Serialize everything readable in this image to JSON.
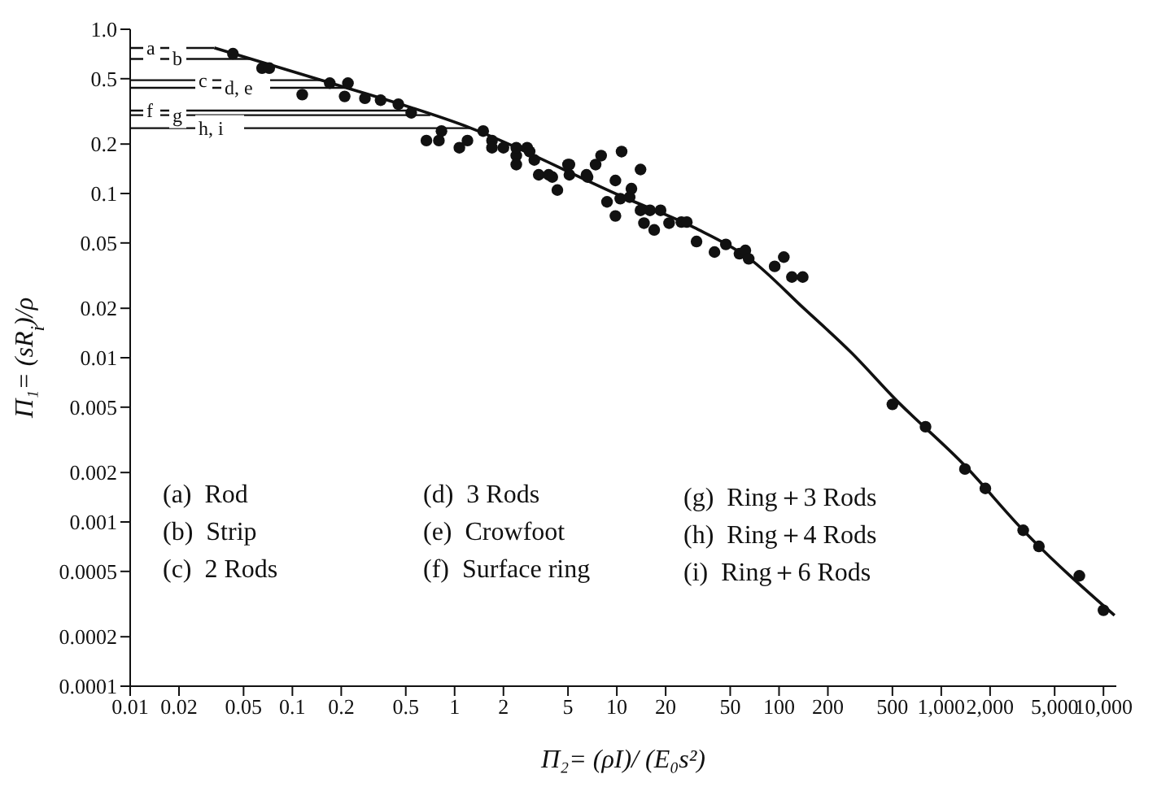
{
  "chart_data": {
    "type": "scatter",
    "xlabel": "Π₂= (ρI)/ (E₀s²)",
    "ylabel": "Π₁= (sR$_{i}$)/ρ",
    "log": "xy",
    "grid": false,
    "legend": false,
    "marker": "circle",
    "xlim": [
      0.01,
      12000
    ],
    "ylim": [
      0.0001,
      1
    ],
    "xticks": [
      0.01,
      0.02,
      0.05,
      0.1,
      0.2,
      0.5,
      1,
      2,
      5,
      10,
      20,
      50,
      100,
      200,
      500,
      {
        "value": 1000,
        "label": "1,000"
      },
      {
        "value": 2000,
        "label": "2,000"
      },
      {
        "value": 5000,
        "label": "5,000"
      },
      {
        "value": 10000,
        "label": "10,000"
      }
    ],
    "yticks": [
      {
        "value": 1,
        "label": "1.0"
      },
      0.5,
      0.2,
      0.1,
      0.05,
      0.02,
      0.01,
      0.005,
      0.002,
      0.001,
      0.0005,
      0.0002,
      0.0001
    ],
    "series": [
      {
        "color": "#111111",
        "x": [
          0.043,
          0.065,
          0.072,
          0.115,
          0.17,
          0.22,
          0.21,
          0.28,
          0.35,
          0.45,
          0.54,
          0.67,
          0.8,
          0.83,
          1.07,
          1.2,
          1.5,
          1.7,
          1.7,
          2.0,
          2.4,
          2.8,
          3.1,
          3.8,
          4.3,
          5.0,
          6.5,
          2.4,
          2.9,
          2.4,
          3.3,
          4.0,
          5.1,
          5.1,
          6.6,
          7.4,
          8,
          8.7,
          9.8,
          9.8,
          10.7,
          10.5,
          12,
          12.3,
          14,
          14,
          14.7,
          16,
          17,
          18.6,
          21,
          25,
          27,
          31,
          40,
          47,
          57,
          62,
          65,
          94,
          107,
          120,
          140,
          500,
          800,
          1400,
          1870,
          3200,
          4000,
          7100,
          10000
        ],
        "values": [
          0.71,
          0.58,
          0.58,
          0.4,
          0.47,
          0.47,
          0.39,
          0.38,
          0.37,
          0.35,
          0.31,
          0.21,
          0.21,
          0.24,
          0.19,
          0.21,
          0.24,
          0.21,
          0.19,
          0.19,
          0.17,
          0.19,
          0.16,
          0.13,
          0.105,
          0.15,
          0.13,
          0.19,
          0.18,
          0.15,
          0.13,
          0.126,
          0.15,
          0.13,
          0.126,
          0.15,
          0.17,
          0.089,
          0.12,
          0.073,
          0.18,
          0.093,
          0.095,
          0.107,
          0.14,
          0.079,
          0.066,
          0.079,
          0.06,
          0.079,
          0.066,
          0.067,
          0.067,
          0.051,
          0.044,
          0.049,
          0.043,
          0.045,
          0.04,
          0.036,
          0.041,
          0.031,
          0.031,
          0.0052,
          0.0038,
          0.0021,
          0.0016,
          0.00089,
          0.00071,
          0.00047,
          0.00029
        ]
      },
      {
        "type": "line",
        "color": "#111111",
        "line_style": "solid",
        "marker": "none",
        "x": [
          0.033,
          0.15,
          1.26,
          11,
          30,
          66,
          142,
          280,
          520,
          1400,
          3200,
          11700
        ],
        "values": [
          0.77,
          0.49,
          0.25,
          0.095,
          0.062,
          0.04,
          0.02,
          0.0107,
          0.0056,
          0.0022,
          0.00089,
          0.00027
        ]
      }
    ],
    "ref_lines": [
      {
        "axis": "y",
        "value": 0.77,
        "label": "a",
        "color": "#111111"
      },
      {
        "axis": "y",
        "value": 0.66,
        "label": "b",
        "color": "#111111"
      },
      {
        "axis": "y",
        "value": 0.49,
        "label": "c",
        "color": "#111111"
      },
      {
        "axis": "y",
        "value": 0.44,
        "label": "d, e",
        "color": "#111111"
      },
      {
        "axis": "y",
        "value": 0.32,
        "label": "f",
        "color": "#111111"
      },
      {
        "axis": "y",
        "value": 0.3,
        "label": "g",
        "color": "#111111"
      },
      {
        "axis": "y",
        "value": 0.25,
        "label": "h, i",
        "color": "#111111"
      }
    ],
    "annotations": [
      "(a)  Rod",
      "(b)  Strip",
      "(c)  2 Rods",
      "(d)  3 Rods",
      "(e)  Crowfoot",
      "(f)  Surface ring",
      "(g)  Ring＋3 Rods",
      "(h)  Ring＋4 Rods",
      "(i)  Ring＋6 Rods"
    ]
  }
}
